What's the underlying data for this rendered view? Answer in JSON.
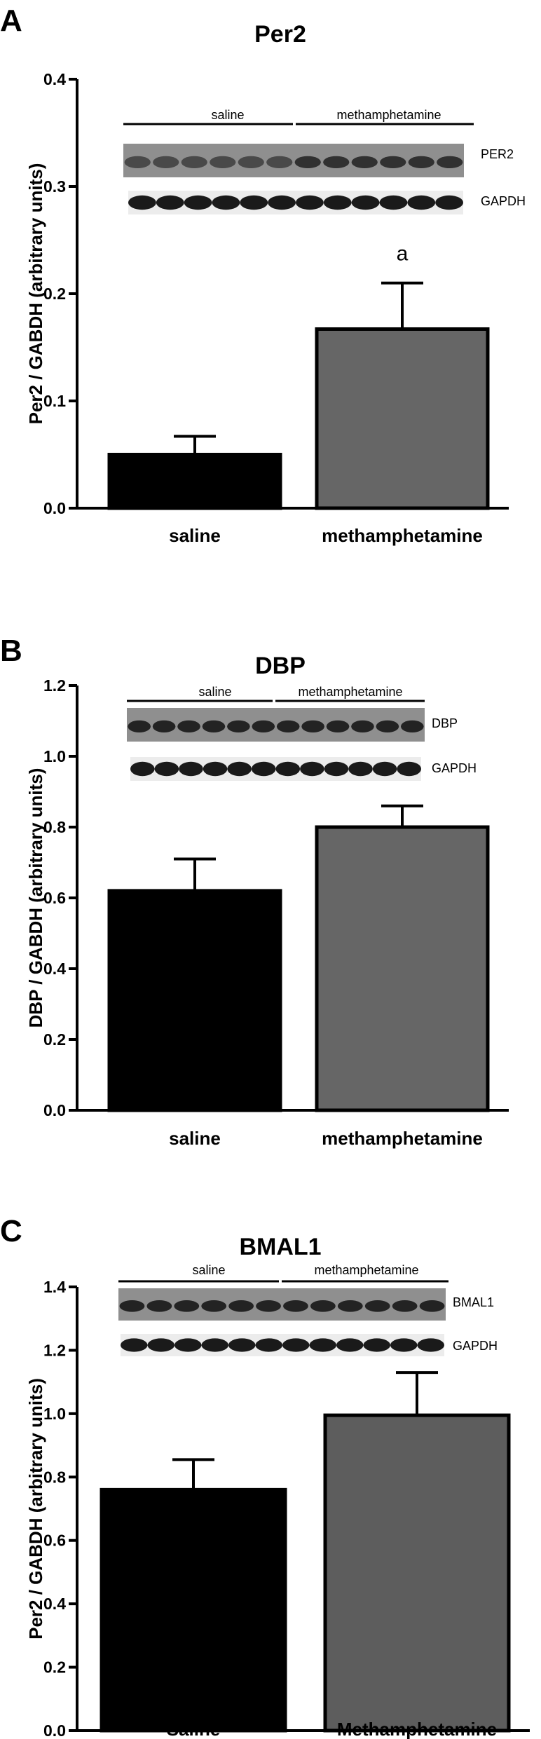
{
  "chart_data": [
    {
      "panel": "A",
      "type": "bar",
      "title": "Per2",
      "ylabel": "Per2 / GABDH (arbitrary units)",
      "xlabel": "",
      "categories": [
        "saline",
        "methamphetamine"
      ],
      "values": [
        0.05,
        0.167
      ],
      "errors": [
        0.017,
        0.043
      ],
      "colors": [
        "#000000",
        "#666666"
      ],
      "ylim": [
        0,
        0.4
      ],
      "yticks": [
        "0.0",
        "0.1",
        "0.2",
        "0.3",
        "0.4"
      ],
      "annotations": [
        {
          "category": "methamphetamine",
          "text": "a"
        }
      ],
      "blot": {
        "groups": [
          "saline",
          "methamphetamine"
        ],
        "lanes": 12,
        "bands": [
          "PER2",
          "GAPDH"
        ]
      }
    },
    {
      "panel": "B",
      "type": "bar",
      "title": "DBP",
      "ylabel": "DBP / GABDH (arbitrary units)",
      "xlabel": "",
      "categories": [
        "saline",
        "methamphetamine"
      ],
      "values": [
        0.62,
        0.8
      ],
      "errors": [
        0.09,
        0.06
      ],
      "colors": [
        "#000000",
        "#666666"
      ],
      "ylim": [
        0,
        1.2
      ],
      "yticks": [
        "0.0",
        "0.2",
        "0.4",
        "0.6",
        "0.8",
        "1.0",
        "1.2"
      ],
      "annotations": [],
      "blot": {
        "groups": [
          "saline",
          "methamphetamine"
        ],
        "lanes": 12,
        "bands": [
          "DBP",
          "GAPDH"
        ]
      }
    },
    {
      "panel": "C",
      "type": "bar",
      "title": "BMAL1",
      "ylabel": "Per2 / GABDH (arbitrary units)",
      "xlabel": "",
      "categories": [
        "Saline",
        "Methamphetamine"
      ],
      "values": [
        0.76,
        0.995
      ],
      "errors": [
        0.095,
        0.135
      ],
      "colors": [
        "#000000",
        "#5d5d5d"
      ],
      "ylim": [
        0,
        1.4
      ],
      "yticks": [
        "0.0",
        "0.2",
        "0.4",
        "0.6",
        "0.8",
        "1.0",
        "1.2",
        "1.4"
      ],
      "annotations": [],
      "blot": {
        "groups": [
          "saline",
          "methamphetamine"
        ],
        "lanes": 12,
        "bands": [
          "BMAL1",
          "GAPDH"
        ]
      }
    }
  ]
}
